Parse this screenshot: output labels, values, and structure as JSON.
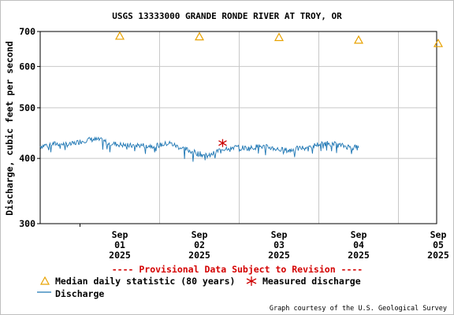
{
  "chart_data": {
    "type": "line",
    "title": "USGS 13333000 GRANDE RONDE RIVER AT TROY, OR",
    "ylabel": "Discharge, cubic feet per second",
    "y_scale": "log",
    "ylim": [
      300,
      700
    ],
    "y_ticks": [
      "700",
      "600",
      "500",
      "400",
      "300"
    ],
    "x_ticks": [
      {
        "month": "Sep",
        "day": "01",
        "year": "2025"
      },
      {
        "month": "Sep",
        "day": "02",
        "year": "2025"
      },
      {
        "month": "Sep",
        "day": "03",
        "year": "2025"
      },
      {
        "month": "Sep",
        "day": "04",
        "year": "2025"
      },
      {
        "month": "Sep",
        "day": "05",
        "year": "2025"
      }
    ],
    "grid": true,
    "provisional_note": "---- Provisional Data Subject to Revision ----",
    "credit": "Graph courtesy of the U.S. Geological Survey",
    "legend": {
      "median_label": "Median daily statistic (80 years)",
      "measured_label": "Measured discharge",
      "discharge_label": "Discharge"
    },
    "colors": {
      "discharge": "#1f77b4",
      "median": "#e8a200",
      "measured": "#cc0000",
      "provisional": "#d40000",
      "grid": "#c8c8c8"
    },
    "series": [
      {
        "name": "Median daily statistic (80 years)",
        "marker": "triangle",
        "points": [
          {
            "x": "2025-09-01",
            "y": 686
          },
          {
            "x": "2025-09-02",
            "y": 684
          },
          {
            "x": "2025-09-03",
            "y": 682
          },
          {
            "x": "2025-09-04",
            "y": 674
          },
          {
            "x": "2025-09-05",
            "y": 664
          }
        ]
      },
      {
        "name": "Measured discharge",
        "marker": "asterisk",
        "points": [
          {
            "x": "2025-09-02T19:00",
            "y": 428
          }
        ]
      },
      {
        "name": "Discharge",
        "marker": "line",
        "points": [
          {
            "x": "2025-08-31T12:00",
            "y": 422
          },
          {
            "x": "2025-08-31T15:00",
            "y": 426
          },
          {
            "x": "2025-08-31T18:00",
            "y": 427
          },
          {
            "x": "2025-08-31T21:00",
            "y": 425
          },
          {
            "x": "2025-09-01T00:00",
            "y": 431
          },
          {
            "x": "2025-09-01T03:00",
            "y": 435
          },
          {
            "x": "2025-09-01T06:00",
            "y": 434
          },
          {
            "x": "2025-09-01T09:00",
            "y": 428
          },
          {
            "x": "2025-09-01T12:00",
            "y": 425
          },
          {
            "x": "2025-09-01T15:00",
            "y": 423
          },
          {
            "x": "2025-09-01T18:00",
            "y": 424
          },
          {
            "x": "2025-09-01T21:00",
            "y": 423
          },
          {
            "x": "2025-09-02T00:00",
            "y": 424
          },
          {
            "x": "2025-09-02T03:00",
            "y": 428
          },
          {
            "x": "2025-09-02T06:00",
            "y": 420
          },
          {
            "x": "2025-09-02T09:00",
            "y": 414
          },
          {
            "x": "2025-09-02T12:00",
            "y": 408
          },
          {
            "x": "2025-09-02T15:00",
            "y": 404
          },
          {
            "x": "2025-09-02T18:00",
            "y": 415
          },
          {
            "x": "2025-09-02T21:00",
            "y": 420
          },
          {
            "x": "2025-09-03T00:00",
            "y": 420
          },
          {
            "x": "2025-09-03T03:00",
            "y": 418
          },
          {
            "x": "2025-09-03T06:00",
            "y": 422
          },
          {
            "x": "2025-09-03T09:00",
            "y": 420
          },
          {
            "x": "2025-09-03T12:00",
            "y": 416
          },
          {
            "x": "2025-09-03T15:00",
            "y": 414
          },
          {
            "x": "2025-09-03T18:00",
            "y": 418
          },
          {
            "x": "2025-09-03T21:00",
            "y": 421
          },
          {
            "x": "2025-09-04T00:00",
            "y": 426
          },
          {
            "x": "2025-09-04T03:00",
            "y": 428
          },
          {
            "x": "2025-09-04T06:00",
            "y": 424
          },
          {
            "x": "2025-09-04T09:00",
            "y": 421
          },
          {
            "x": "2025-09-04T12:00",
            "y": 419
          }
        ]
      }
    ]
  }
}
